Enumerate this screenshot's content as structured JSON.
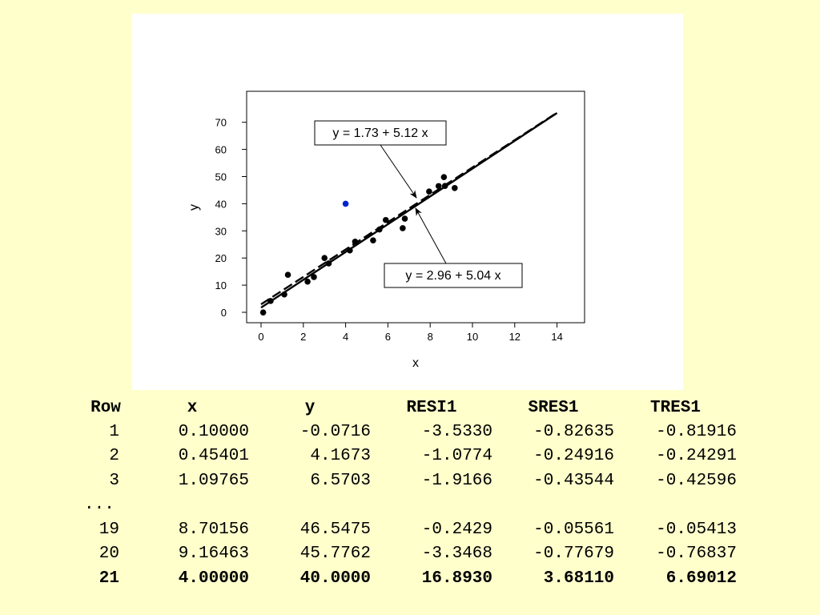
{
  "chart_data": {
    "type": "scatter",
    "title": "",
    "xlabel": "x",
    "ylabel": "y",
    "xlim": [
      -0.5,
      15.5
    ],
    "ylim": [
      -4,
      76
    ],
    "xticks": [
      0,
      2,
      4,
      6,
      8,
      10,
      12,
      14
    ],
    "yticks": [
      0,
      10,
      20,
      30,
      40,
      50,
      60,
      70
    ],
    "grid": false,
    "points": [
      {
        "x": 0.1,
        "y": -0.07
      },
      {
        "x": 0.45,
        "y": 4.17
      },
      {
        "x": 1.1,
        "y": 6.57
      },
      {
        "x": 1.27,
        "y": 13.8
      },
      {
        "x": 2.2,
        "y": 11.3
      },
      {
        "x": 2.5,
        "y": 13.0
      },
      {
        "x": 3.0,
        "y": 20.0
      },
      {
        "x": 3.2,
        "y": 18.0
      },
      {
        "x": 4.2,
        "y": 22.8
      },
      {
        "x": 4.45,
        "y": 26.0
      },
      {
        "x": 5.3,
        "y": 26.5
      },
      {
        "x": 5.6,
        "y": 30.5
      },
      {
        "x": 5.9,
        "y": 34.0
      },
      {
        "x": 6.7,
        "y": 31.0
      },
      {
        "x": 6.8,
        "y": 34.5
      },
      {
        "x": 7.95,
        "y": 44.5
      },
      {
        "x": 8.4,
        "y": 46.5
      },
      {
        "x": 8.65,
        "y": 49.8
      },
      {
        "x": 8.7,
        "y": 46.55
      },
      {
        "x": 9.16,
        "y": 45.78
      }
    ],
    "highlight_point": {
      "x": 4.0,
      "y": 40.0,
      "color": "#0022cc"
    },
    "lines": [
      {
        "intercept": 1.73,
        "slope": 5.12,
        "style": "solid",
        "x_range": [
          0,
          14
        ]
      },
      {
        "intercept": 2.96,
        "slope": 5.04,
        "style": "dashed",
        "x_range": [
          0,
          14
        ]
      }
    ],
    "annotations": [
      {
        "text": "y = 1.73 + 5.12 x",
        "line": "solid"
      },
      {
        "text": "y = 2.96 + 5.04 x",
        "line": "dashed"
      }
    ]
  },
  "table": {
    "headers": [
      "Row",
      "x",
      "y",
      "RESI1",
      "SRES1",
      "TRES1"
    ],
    "rows": [
      {
        "cells": [
          "1",
          "0.10000",
          "-0.0716",
          "-3.5330",
          "-0.82635",
          "-0.81916"
        ],
        "bold": false
      },
      {
        "cells": [
          "2",
          "0.45401",
          "4.1673",
          "-1.0774",
          "-0.24916",
          "-0.24291"
        ],
        "bold": false
      },
      {
        "cells": [
          "3",
          "1.09765",
          "6.5703",
          "-1.9166",
          "-0.43544",
          "-0.42596"
        ],
        "bold": false
      },
      {
        "cells": [
          "...",
          "",
          "",
          "",
          "",
          ""
        ],
        "bold": false,
        "ellipsis": true
      },
      {
        "cells": [
          "19",
          "8.70156",
          "46.5475",
          "-0.2429",
          "-0.05561",
          "-0.05413"
        ],
        "bold": false
      },
      {
        "cells": [
          "20",
          "9.16463",
          "45.7762",
          "-3.3468",
          "-0.77679",
          "-0.76837"
        ],
        "bold": false
      },
      {
        "cells": [
          "21",
          "4.00000",
          "40.0000",
          "16.8930",
          "3.68110",
          "6.69012"
        ],
        "bold": true
      }
    ]
  }
}
